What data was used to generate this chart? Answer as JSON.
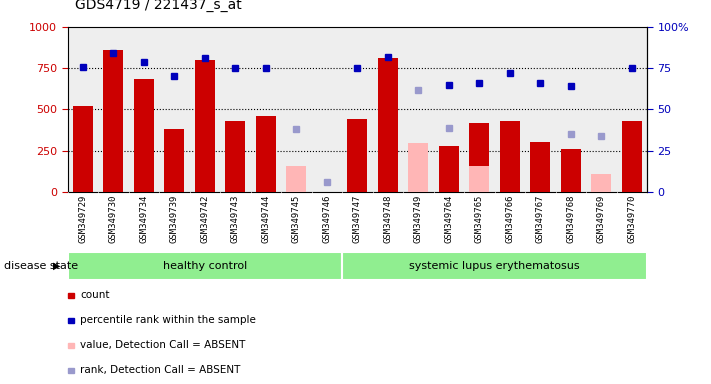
{
  "title": "GDS4719 / 221437_s_at",
  "samples": [
    "GSM349729",
    "GSM349730",
    "GSM349734",
    "GSM349739",
    "GSM349742",
    "GSM349743",
    "GSM349744",
    "GSM349745",
    "GSM349746",
    "GSM349747",
    "GSM349748",
    "GSM349749",
    "GSM349764",
    "GSM349765",
    "GSM349766",
    "GSM349767",
    "GSM349768",
    "GSM349769",
    "GSM349770"
  ],
  "n_healthy": 9,
  "n_lupus": 10,
  "count_values": [
    520,
    860,
    685,
    380,
    800,
    430,
    460,
    null,
    null,
    440,
    810,
    null,
    280,
    415,
    430,
    305,
    260,
    null,
    430
  ],
  "count_absent": [
    null,
    null,
    null,
    null,
    null,
    null,
    null,
    155,
    null,
    null,
    null,
    295,
    null,
    155,
    null,
    null,
    null,
    110,
    null
  ],
  "percentile_values": [
    76,
    84,
    79,
    70,
    81,
    75,
    75,
    null,
    null,
    75,
    82,
    null,
    65,
    66,
    72,
    66,
    64,
    null,
    75
  ],
  "percentile_absent": [
    null,
    null,
    null,
    null,
    null,
    null,
    null,
    38,
    6,
    null,
    null,
    62,
    39,
    null,
    null,
    null,
    35,
    34,
    null
  ],
  "ylim_left": [
    0,
    1000
  ],
  "ylim_right": [
    0,
    100
  ],
  "bar_color_red": "#cc0000",
  "bar_color_pink": "#ffb6b6",
  "dot_color_blue": "#0000bb",
  "dot_color_lightblue": "#9999cc",
  "plot_bg": "#eeeeee",
  "disease_state_label": "disease state",
  "healthy_label": "healthy control",
  "lupus_label": "systemic lupus erythematosus",
  "group_color": "#90ee90",
  "xtick_bg": "#cccccc",
  "legend_items": [
    {
      "label": "count",
      "color": "#cc0000"
    },
    {
      "label": "percentile rank within the sample",
      "color": "#0000bb"
    },
    {
      "label": "value, Detection Call = ABSENT",
      "color": "#ffb6b6"
    },
    {
      "label": "rank, Detection Call = ABSENT",
      "color": "#9999cc"
    }
  ]
}
